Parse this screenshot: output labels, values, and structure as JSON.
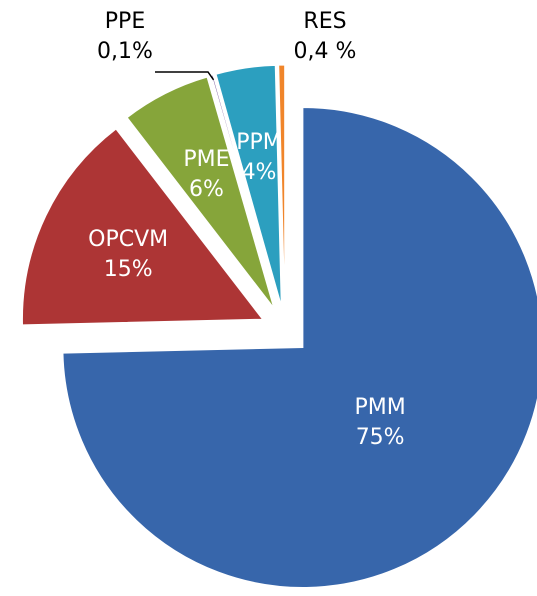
{
  "chart_data": {
    "type": "pie",
    "categories": [
      "PMM",
      "OPCVM",
      "PME",
      "PPE",
      "PPM",
      "RES"
    ],
    "values": [
      75,
      15,
      6,
      0.1,
      4,
      0.4
    ],
    "value_labels": [
      "75%",
      "15%",
      "6%",
      "0,1%",
      "4%",
      "0,4 %"
    ],
    "colors": [
      "#3766ab",
      "#ad3535",
      "#86a53a",
      "#7b5a9c",
      "#2c9fbf",
      "#f0852a"
    ]
  }
}
